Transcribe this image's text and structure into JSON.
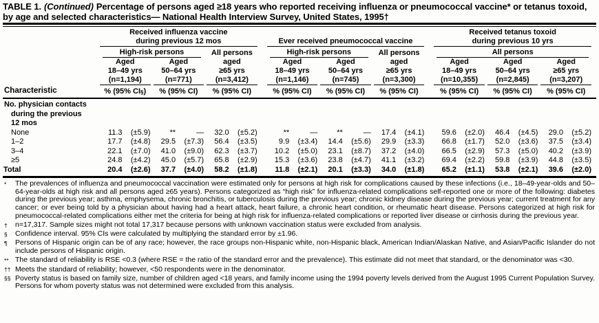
{
  "title": {
    "label": "TABLE 1.",
    "continued": "(Continued)",
    "rest": "Percentage of persons aged ≥18 years who reported receiving influenza or pneumococcal vaccine* or tetanus toxoid, by age and selected characteristics— National Health Interview Survey, United States, 1995†"
  },
  "table": {
    "characteristic_header": "Characteristic",
    "groups": [
      {
        "title_line1": "Received influenza vaccine",
        "title_line2": "during previous 12 mos",
        "subgroup_a": "High-risk persons",
        "subgroup_b": "All persons"
      },
      {
        "title_line1": "",
        "title_line2": "Ever received pneumococcal vaccine",
        "subgroup_a": "High-risk persons",
        "subgroup_b": "All persons"
      },
      {
        "title_line1": "Received tetanus toxoid",
        "title_line2": "during previous 10 yrs",
        "subgroup_a": "All persons",
        "subgroup_b": ""
      }
    ],
    "columns": [
      {
        "aged": "Aged",
        "range": "18–49 yrs",
        "n": "(n=1,194)",
        "measure_pre": "% (95% CI",
        "measure_sup": "§",
        "measure_post": ")"
      },
      {
        "aged": "Aged",
        "range": "50–64 yrs",
        "n": "(n=771)",
        "measure_pre": "% (95% CI)",
        "measure_sup": "",
        "measure_post": ""
      },
      {
        "aged": "aged",
        "range": "≥65 yrs",
        "n": "(n=3,412)",
        "measure_pre": "% (95% CI)",
        "measure_sup": "",
        "measure_post": ""
      },
      {
        "aged": "Aged",
        "range": "18–49 yrs",
        "n": "(n=1,146)",
        "measure_pre": "% (95% CI)",
        "measure_sup": "",
        "measure_post": ""
      },
      {
        "aged": "Aged",
        "range": "50–64 yrs",
        "n": "(n=745)",
        "measure_pre": "% (95% CI)",
        "measure_sup": "",
        "measure_post": ""
      },
      {
        "aged": "aged",
        "range": "≥65 yrs",
        "n": "(n=3,300)",
        "measure_pre": "% (95% CI)",
        "measure_sup": "",
        "measure_post": ""
      },
      {
        "aged": "Aged",
        "range": "18–49 yrs",
        "n": "(n=10,355)",
        "measure_pre": "% (95% CI)",
        "measure_sup": "",
        "measure_post": ""
      },
      {
        "aged": "Aged",
        "range": "50–64 yrs",
        "n": "(n=2,845)",
        "measure_pre": "% (95% CI)",
        "measure_sup": "",
        "measure_post": ""
      },
      {
        "aged": "Aged",
        "range": "≥65 yrs",
        "n": "(n=3,207)",
        "measure_pre": "% (95% CI)",
        "measure_sup": "",
        "measure_post": ""
      }
    ],
    "section_label": [
      "No. physician contacts",
      "during the previous",
      "12 mos"
    ],
    "rows": [
      {
        "label": "None",
        "cells": [
          [
            "11.3",
            "(±5.9)"
          ],
          [
            "**",
            "—"
          ],
          [
            "32.0",
            "(±5.2)"
          ],
          [
            "**",
            "—"
          ],
          [
            "**",
            "—"
          ],
          [
            "17.4",
            "(±4.1)"
          ],
          [
            "59.6",
            "(±2.0)"
          ],
          [
            "46.4",
            "(±4.5)"
          ],
          [
            "29.0",
            "(±5.2)"
          ]
        ]
      },
      {
        "label": "1–2",
        "cells": [
          [
            "17.7",
            "(±4.8)"
          ],
          [
            "29.5",
            "(±7.3)"
          ],
          [
            "56.4",
            "(±3.5)"
          ],
          [
            "9.9",
            "(±3.4)"
          ],
          [
            "14.4",
            "(±5.6)"
          ],
          [
            "29.9",
            "(±3.3)"
          ],
          [
            "66.8",
            "(±1.7)"
          ],
          [
            "52.0",
            "(±3.6)"
          ],
          [
            "37.5",
            "(±3.4)"
          ]
        ]
      },
      {
        "label": "3–4",
        "cells": [
          [
            "22.1",
            "(±7.0)"
          ],
          [
            "41.0",
            "(±9.0)"
          ],
          [
            "62.3",
            "(±3.7)"
          ],
          [
            "10.2",
            "(±5.0)"
          ],
          [
            "23.1",
            "(±8.7)"
          ],
          [
            "37.2",
            "(±4.0)"
          ],
          [
            "66.5",
            "(±2.9)"
          ],
          [
            "57.3",
            "(±5.0)"
          ],
          [
            "40.2",
            "(±3.9)"
          ]
        ]
      },
      {
        "label": "≥5",
        "cells": [
          [
            "24.8",
            "(±4.2)"
          ],
          [
            "45.0",
            "(±5.7)"
          ],
          [
            "65.8",
            "(±2.9)"
          ],
          [
            "15.3",
            "(±3.6)"
          ],
          [
            "23.8",
            "(±4.7)"
          ],
          [
            "41.1",
            "(±3.2)"
          ],
          [
            "69.4",
            "(±2.2)"
          ],
          [
            "59.8",
            "(±3.9)"
          ],
          [
            "44.8",
            "(±3.5)"
          ]
        ]
      }
    ],
    "total": {
      "label": "Total",
      "cells": [
        [
          "20.4",
          "(±2.6)"
        ],
        [
          "37.7",
          "(±4.0)"
        ],
        [
          "58.2",
          "(±1.8)"
        ],
        [
          "11.8",
          "(±2.1)"
        ],
        [
          "20.1",
          "(±3.3)"
        ],
        [
          "34.0",
          "(±1.8)"
        ],
        [
          "65.2",
          "(±1.1)"
        ],
        [
          "53.8",
          "(±2.1)"
        ],
        [
          "39.6",
          "(±2.0)"
        ]
      ]
    }
  },
  "footnotes": [
    {
      "mark": "*",
      "text": "The prevalences of influenza and pneumococcal vaccination were estimated only for persons at high risk for complications caused by these infections (i.e., 18–49-year-olds and 50–64-year-olds at high risk and all persons aged ≥65 years). Persons categorized as “high risk” for influenza-related complications self-reported one or more of the following: diabetes during the previous year; asthma, emphysema, chronic bronchitis, or tuberculosis during the previous year; chronic kidney disease during the previous year; current treatment for any cancer; or ever being told by a physician about having had a heart attack, heart failure, a chronic heart condition, or rheumatic heart disease. Persons categorized at high risk for pneumococcal-related complications either met the criteria for being at high risk for influenza-related complications or reported liver disease or cirrhosis during the previous year."
    },
    {
      "mark": "†",
      "text": "n=17,317. Sample sizes might not total 17,317 because persons with unknown vaccination status were excluded from analysis."
    },
    {
      "mark": "§",
      "text": "Confidence interval. 95% CIs were calculated by multiplying the standard error by ±1.96."
    },
    {
      "mark": "¶",
      "text": "Persons of Hispanic origin can be of any race; however, the race groups non-Hispanic white, non-Hispanic black, American Indian/Alaskan Native, and Asian/Pacific Islander do not include persons of Hispanic origin."
    },
    {
      "mark": "**",
      "text": "The standard of reliability is RSE <0.3 (where RSE = the ratio of the standard error and the prevalence). This estimate did not meet that standard, or the denominator was <30."
    },
    {
      "mark": "††",
      "text": "Meets the standard of reliability; however, <50 respondents were in the denominator."
    },
    {
      "mark": "§§",
      "text": "Poverty status is based on family size, number of children aged <18 years, and family income using the 1994 poverty levels derived from the August 1995 Current Population Survey. Persons for whom poverty status was not determined were excluded from this analysis."
    }
  ]
}
